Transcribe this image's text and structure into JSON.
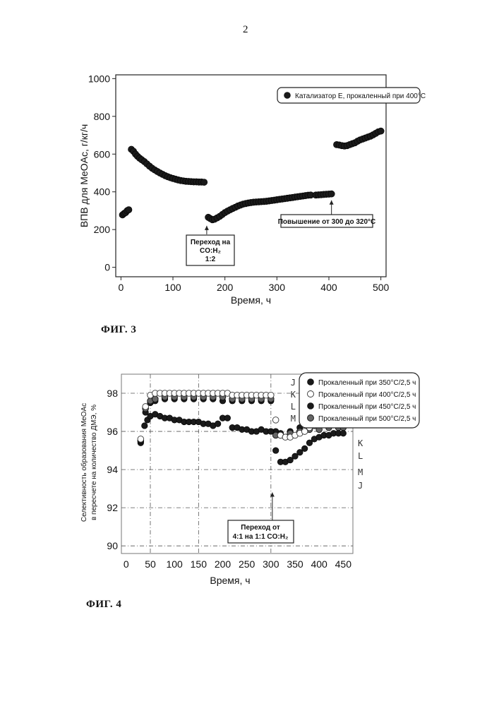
{
  "page": {
    "number": "2"
  },
  "figures": [
    {
      "caption": "ФИГ. 3"
    },
    {
      "caption": "ФИГ. 4"
    }
  ],
  "chart_data": [
    {
      "type": "scatter",
      "title": "",
      "xlabel": "Время, ч",
      "ylabel": "ВПВ для MeOAc, г/кг/ч",
      "xlim": [
        -10,
        510
      ],
      "ylim": [
        -50,
        1020
      ],
      "xticks": [
        "0",
        "100",
        "200",
        "300",
        "400",
        "500"
      ],
      "yticks": [
        "0",
        "200",
        "400",
        "600",
        "800",
        "1000"
      ],
      "grid": false,
      "legend_position": "top-right",
      "series": [
        {
          "name": "Катализатор E, прокаленный при 400°C",
          "color": "#1a1a1a",
          "points": [
            [
              3,
              278
            ],
            [
              6,
              285
            ],
            [
              9,
              290
            ],
            [
              12,
              300
            ],
            [
              15,
              305
            ],
            [
              20,
              625
            ],
            [
              24,
              615
            ],
            [
              28,
              600
            ],
            [
              32,
              588
            ],
            [
              36,
              578
            ],
            [
              40,
              570
            ],
            [
              45,
              560
            ],
            [
              50,
              548
            ],
            [
              55,
              536
            ],
            [
              60,
              525
            ],
            [
              65,
              516
            ],
            [
              70,
              508
            ],
            [
              75,
              500
            ],
            [
              80,
              493
            ],
            [
              85,
              486
            ],
            [
              90,
              480
            ],
            [
              95,
              475
            ],
            [
              100,
              471
            ],
            [
              105,
              467
            ],
            [
              110,
              463
            ],
            [
              115,
              460
            ],
            [
              120,
              458
            ],
            [
              125,
              456
            ],
            [
              130,
              455
            ],
            [
              135,
              454
            ],
            [
              140,
              453
            ],
            [
              145,
              453
            ],
            [
              150,
              452
            ],
            [
              155,
              452
            ],
            [
              160,
              451
            ],
            [
              168,
              265
            ],
            [
              172,
              258
            ],
            [
              176,
              252
            ],
            [
              180,
              255
            ],
            [
              185,
              262
            ],
            [
              190,
              270
            ],
            [
              195,
              280
            ],
            [
              200,
              290
            ],
            [
              205,
              298
            ],
            [
              210,
              305
            ],
            [
              215,
              312
            ],
            [
              220,
              318
            ],
            [
              225,
              325
            ],
            [
              230,
              330
            ],
            [
              235,
              335
            ],
            [
              240,
              338
            ],
            [
              245,
              341
            ],
            [
              250,
              343
            ],
            [
              255,
              345
            ],
            [
              260,
              346
            ],
            [
              265,
              347
            ],
            [
              270,
              348
            ],
            [
              275,
              349
            ],
            [
              280,
              350
            ],
            [
              285,
              352
            ],
            [
              290,
              354
            ],
            [
              295,
              356
            ],
            [
              300,
              358
            ],
            [
              305,
              360
            ],
            [
              310,
              362
            ],
            [
              315,
              364
            ],
            [
              320,
              366
            ],
            [
              325,
              368
            ],
            [
              330,
              370
            ],
            [
              335,
              372
            ],
            [
              340,
              374
            ],
            [
              345,
              376
            ],
            [
              350,
              378
            ],
            [
              355,
              380
            ],
            [
              360,
              382
            ],
            [
              365,
              383
            ],
            [
              375,
              383
            ],
            [
              380,
              384
            ],
            [
              385,
              385
            ],
            [
              390,
              386
            ],
            [
              395,
              387
            ],
            [
              400,
              388
            ],
            [
              405,
              389
            ],
            [
              415,
              650
            ],
            [
              420,
              648
            ],
            [
              425,
              645
            ],
            [
              430,
              643
            ],
            [
              435,
              645
            ],
            [
              440,
              650
            ],
            [
              445,
              655
            ],
            [
              450,
              660
            ],
            [
              455,
              668
            ],
            [
              460,
              675
            ],
            [
              465,
              680
            ],
            [
              470,
              685
            ],
            [
              475,
              690
            ],
            [
              480,
              695
            ],
            [
              485,
              702
            ],
            [
              490,
              710
            ],
            [
              495,
              718
            ],
            [
              500,
              722
            ]
          ]
        }
      ],
      "annotations": [
        {
          "lines": [
            "Переход на",
            "CO:H₂",
            "1:2"
          ],
          "arrow_x": 165,
          "arrow_y": 220
        },
        {
          "lines": [
            "Повышение от 300 до 320°C"
          ],
          "arrow_x": 405,
          "arrow_y": 355
        }
      ]
    },
    {
      "type": "scatter",
      "title": "",
      "xlabel": "Время, ч",
      "ylabel": "Селективность образования MeOAc в пересчете на количество ДМЭ, %",
      "ylabel_lines": [
        "Селективность образования MeOAc",
        "в пересчете на количество ДМЭ, %"
      ],
      "xlim": [
        -10,
        470
      ],
      "ylim": [
        89.6,
        99
      ],
      "xticks": [
        "0",
        "50",
        "100",
        "150",
        "200",
        "250",
        "300",
        "350",
        "400",
        "450"
      ],
      "yticks": [
        "90",
        "92",
        "94",
        "96",
        "98"
      ],
      "grid": true,
      "legend_position": "top-right",
      "series": [
        {
          "name": "Прокаленный при 350°C/2,5 ч",
          "handwritten_label": "J",
          "style": "filled-dark",
          "points": [
            [
              30,
              95.5
            ],
            [
              38,
              96.3
            ],
            [
              44,
              96.6
            ],
            [
              50,
              96.8
            ],
            [
              60,
              96.9
            ],
            [
              70,
              96.8
            ],
            [
              80,
              96.7
            ],
            [
              90,
              96.7
            ],
            [
              100,
              96.6
            ],
            [
              110,
              96.6
            ],
            [
              120,
              96.5
            ],
            [
              130,
              96.5
            ],
            [
              140,
              96.5
            ],
            [
              150,
              96.5
            ],
            [
              160,
              96.4
            ],
            [
              170,
              96.4
            ],
            [
              180,
              96.3
            ],
            [
              190,
              96.4
            ],
            [
              200,
              96.7
            ],
            [
              210,
              96.7
            ],
            [
              220,
              96.2
            ],
            [
              230,
              96.2
            ],
            [
              240,
              96.1
            ],
            [
              250,
              96.1
            ],
            [
              260,
              96.0
            ],
            [
              270,
              96.0
            ],
            [
              280,
              96.1
            ],
            [
              290,
              96.0
            ],
            [
              300,
              96.0
            ],
            [
              310,
              95.0
            ],
            [
              320,
              94.4
            ],
            [
              330,
              94.4
            ],
            [
              340,
              94.5
            ],
            [
              350,
              94.7
            ],
            [
              360,
              94.9
            ],
            [
              370,
              95.1
            ],
            [
              380,
              95.4
            ],
            [
              390,
              95.6
            ],
            [
              400,
              95.7
            ],
            [
              410,
              95.8
            ],
            [
              420,
              95.8
            ],
            [
              430,
              95.9
            ],
            [
              440,
              95.9
            ],
            [
              450,
              95.9
            ]
          ]
        },
        {
          "name": "Прокаленный при 400°C/2,5 ч",
          "handwritten_label": "K",
          "style": "open",
          "points": [
            [
              30,
              95.6
            ],
            [
              40,
              97.3
            ],
            [
              50,
              97.9
            ],
            [
              60,
              98.0
            ],
            [
              70,
              98.0
            ],
            [
              80,
              98.0
            ],
            [
              90,
              98.0
            ],
            [
              100,
              98.0
            ],
            [
              110,
              98.0
            ],
            [
              120,
              98.0
            ],
            [
              130,
              98.0
            ],
            [
              140,
              98.0
            ],
            [
              150,
              98.0
            ],
            [
              160,
              98.0
            ],
            [
              170,
              98.0
            ],
            [
              180,
              98.0
            ],
            [
              190,
              98.0
            ],
            [
              200,
              98.0
            ],
            [
              210,
              98.0
            ],
            [
              220,
              97.9
            ],
            [
              230,
              97.9
            ],
            [
              240,
              97.9
            ],
            [
              250,
              97.9
            ],
            [
              260,
              97.9
            ],
            [
              270,
              97.9
            ],
            [
              280,
              97.9
            ],
            [
              290,
              97.9
            ],
            [
              300,
              97.9
            ],
            [
              310,
              96.6
            ],
            [
              320,
              95.8
            ],
            [
              330,
              95.7
            ],
            [
              340,
              95.7
            ],
            [
              350,
              95.8
            ],
            [
              360,
              95.9
            ],
            [
              370,
              96.0
            ],
            [
              380,
              96.2
            ],
            [
              390,
              96.3
            ],
            [
              400,
              96.4
            ],
            [
              410,
              96.5
            ],
            [
              420,
              96.6
            ],
            [
              430,
              96.6
            ],
            [
              440,
              96.7
            ],
            [
              450,
              96.7
            ]
          ]
        },
        {
          "name": "Прокаленный при 450°C/2,5 ч",
          "handwritten_label": "L",
          "style": "filled-dark",
          "points": [
            [
              30,
              95.4
            ],
            [
              40,
              97.0
            ],
            [
              50,
              97.5
            ],
            [
              60,
              97.6
            ],
            [
              80,
              97.7
            ],
            [
              100,
              97.7
            ],
            [
              120,
              97.7
            ],
            [
              140,
              97.7
            ],
            [
              160,
              97.7
            ],
            [
              180,
              97.7
            ],
            [
              200,
              97.6
            ],
            [
              220,
              97.6
            ],
            [
              240,
              97.6
            ],
            [
              260,
              97.6
            ],
            [
              280,
              97.6
            ],
            [
              300,
              97.6
            ],
            [
              310,
              96.0
            ],
            [
              320,
              95.9
            ],
            [
              340,
              96.0
            ],
            [
              360,
              96.2
            ],
            [
              380,
              96.5
            ],
            [
              400,
              96.8
            ],
            [
              420,
              97.0
            ],
            [
              440,
              97.1
            ],
            [
              450,
              97.1
            ]
          ]
        },
        {
          "name": "Прокаленный при 500°C/2,5 ч",
          "handwritten_label": "M",
          "style": "filled-grey",
          "points": [
            [
              30,
              95.5
            ],
            [
              40,
              97.2
            ],
            [
              50,
              97.6
            ],
            [
              60,
              97.7
            ],
            [
              80,
              97.8
            ],
            [
              100,
              97.8
            ],
            [
              120,
              97.8
            ],
            [
              140,
              97.8
            ],
            [
              160,
              97.8
            ],
            [
              180,
              97.8
            ],
            [
              200,
              97.8
            ],
            [
              220,
              97.7
            ],
            [
              240,
              97.7
            ],
            [
              260,
              97.7
            ],
            [
              280,
              97.7
            ],
            [
              300,
              97.7
            ],
            [
              310,
              95.8
            ],
            [
              320,
              95.8
            ],
            [
              340,
              95.9
            ],
            [
              360,
              96.0
            ],
            [
              380,
              96.1
            ],
            [
              400,
              96.1
            ],
            [
              420,
              96.2
            ],
            [
              440,
              96.2
            ],
            [
              450,
              96.2
            ]
          ]
        }
      ],
      "annotations": [
        {
          "lines": [
            "Переход от",
            "4:1 на 1:1 CO:H₂"
          ],
          "arrow_x": 303,
          "arrow_y": 92.8
        }
      ]
    }
  ]
}
